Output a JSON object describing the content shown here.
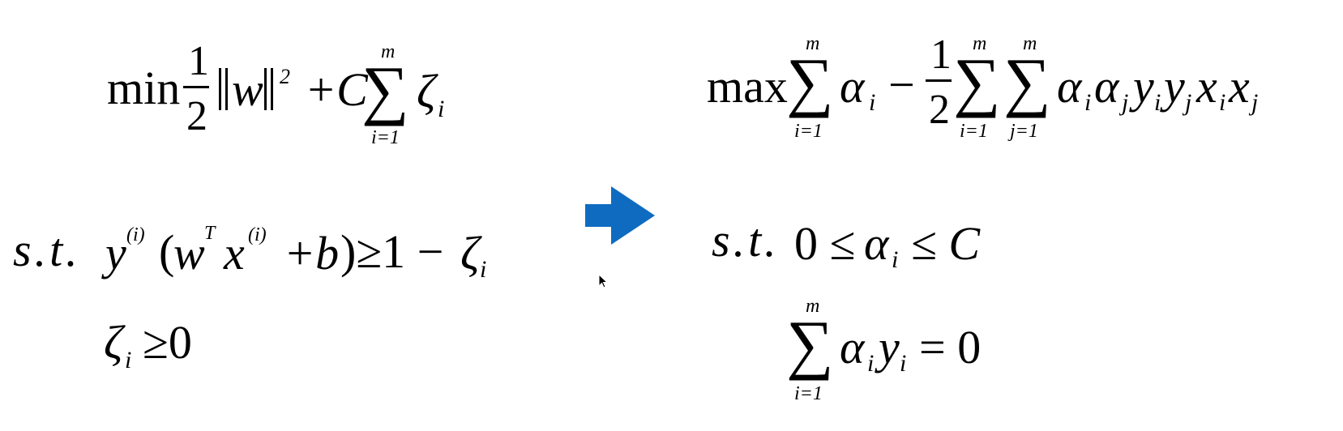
{
  "primal": {
    "min": "min",
    "half_num": "1",
    "half_den": "2",
    "w": "w",
    "sq": "2",
    "plus_c": "+C",
    "sum_top": "m",
    "sum_bottom": "i=1",
    "sigma": "∑",
    "zeta": "ζ",
    "idx_i": "i",
    "st": "s.t.",
    "c1_y": "y",
    "c1_sup_i": "(i)",
    "c1_paren_open": "(",
    "c1_w": "w",
    "c1_T": "T",
    "c1_x": "x",
    "c1_sup_i2": "(i)",
    "c1_plus_b": "+b",
    "c1_rest": ")≥1 −",
    "c1_zeta": "ζ",
    "c1_idx": "i",
    "c2_zeta": "ζ",
    "c2_idx": "i",
    "c2_rest": "≥0"
  },
  "dual": {
    "max": "max",
    "sigma": "∑",
    "sum1_top": "m",
    "sum1_bottom": "i=1",
    "alpha": "α",
    "idx_i": "i",
    "minus": "−",
    "half_num": "1",
    "half_den": "2",
    "sum2_top": "m",
    "sum2_bottom": "i=1",
    "sum3_top": "m",
    "sum3_bottom": "j=1",
    "term": "α",
    "t_i": "i",
    "t_alpha_j": "α",
    "t_j": "j",
    "t_y": "y",
    "t_yi": "i",
    "t_y2": "y",
    "t_yj": "j",
    "t_x": "x",
    "t_xi": "i",
    "t_x2": "x",
    "t_xj": "j",
    "st": "s.t.",
    "c1_left": "0 ≤",
    "c1_alpha": "α",
    "c1_idx": "i",
    "c1_right": "≤ C",
    "c2_sum_top": "m",
    "c2_sum_bottom": "i=1",
    "c2_alpha": "α",
    "c2_ai": "i",
    "c2_y": "y",
    "c2_yi": "i",
    "c2_rest": "= 0"
  },
  "colors": {
    "arrow": "#0E6BC0",
    "text": "#000000",
    "background": "#FFFFFF"
  },
  "icons": {
    "arrow": "right-arrow-icon",
    "cursor": "mouse-cursor-icon"
  }
}
